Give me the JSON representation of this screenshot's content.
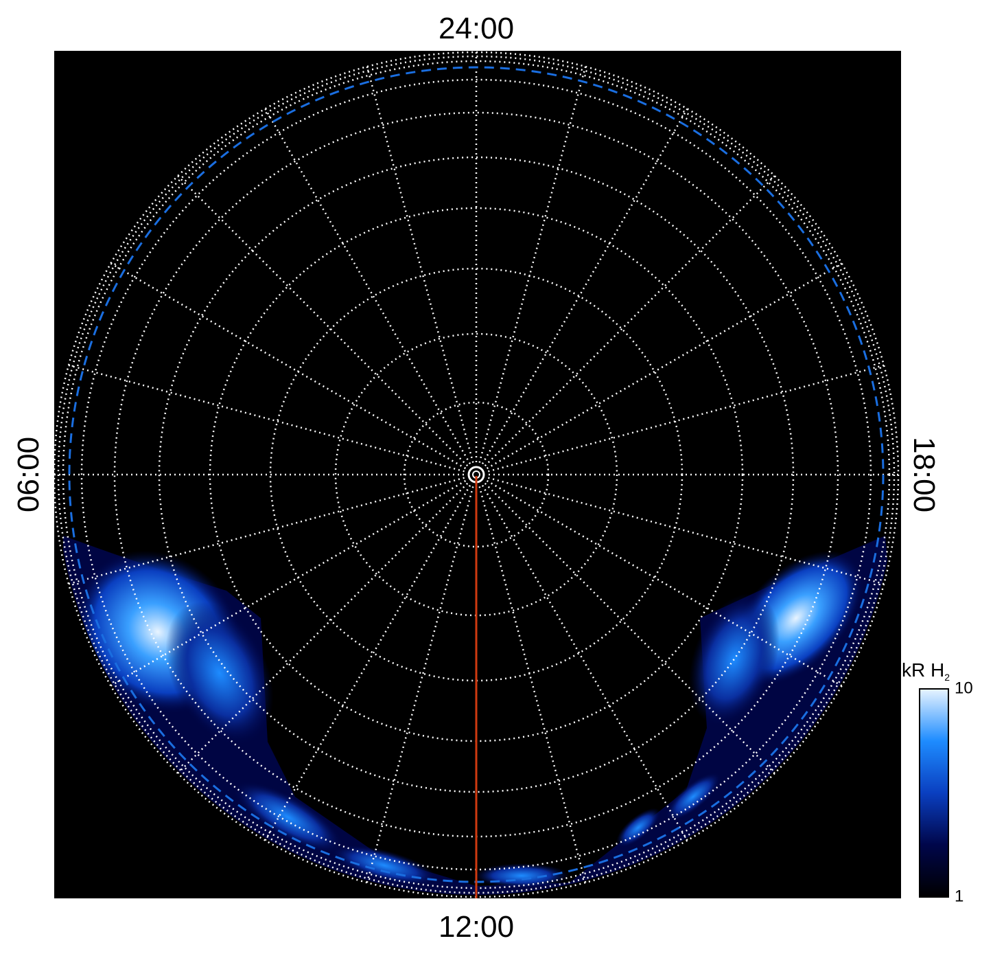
{
  "plot": {
    "time_labels": {
      "top": "24:00",
      "bottom": "12:00",
      "left": "06:00",
      "right": "18:00"
    },
    "colorbar": {
      "label": "kR H",
      "label_sub": "2",
      "clim": [
        1,
        10
      ],
      "ticks": [
        1,
        10
      ],
      "log": true,
      "colors": [
        "#000000",
        "#00064a",
        "#0a3fc0",
        "#1e8cff",
        "#e8f4ff"
      ]
    }
  }
}
